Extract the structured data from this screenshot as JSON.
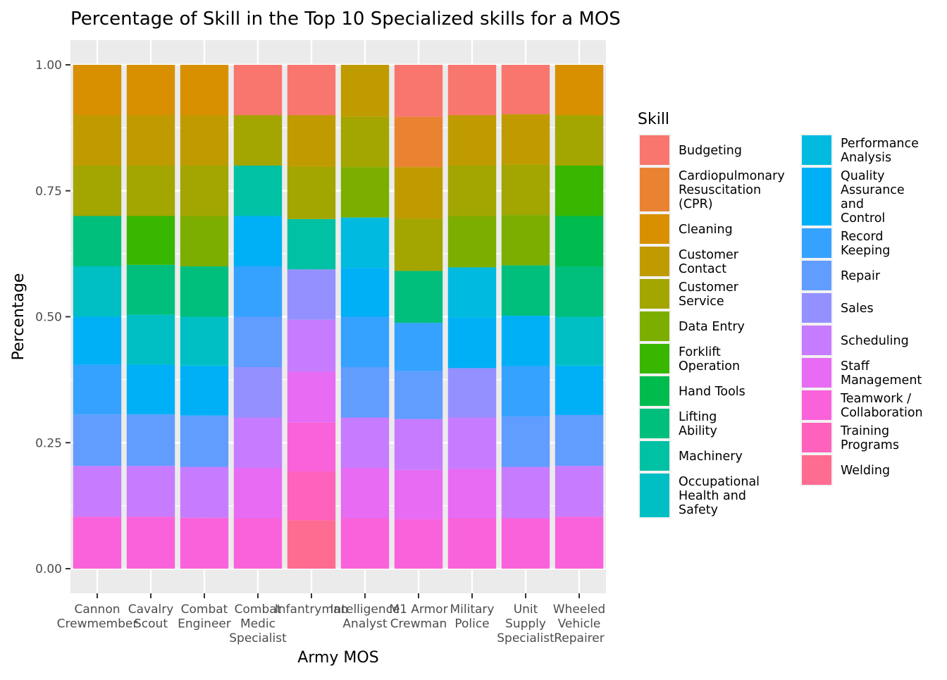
{
  "chart_data": {
    "type": "bar",
    "stacked": true,
    "title": "Percentage of Skill in the Top 10 Specialized skills for a MOS",
    "xlabel": "Army MOS",
    "ylabel": "Percentage",
    "ylim": [
      0,
      1
    ],
    "yticks": [
      "0.00",
      "0.25",
      "0.50",
      "0.75",
      "1.00"
    ],
    "grid": true,
    "legend_title": "Skill",
    "legend_position": "right",
    "categories": [
      "Cannon\nCrewmember",
      "Cavalry\nScout",
      "Combat\nEngineer",
      "Combat\nMedic\nSpecialist",
      "Infantryman",
      "Intelligence\nAnalyst",
      "M1 Armor\nCrewman",
      "Military\nPolice",
      "Unit\nSupply\nSpecialist",
      "Wheeled\nVehicle\nRepairer"
    ],
    "skills": [
      {
        "name": "Budgeting",
        "color": "#F8766D"
      },
      {
        "name": "Cardiopulmonary\nResuscitation\n(CPR)",
        "color": "#EA8331"
      },
      {
        "name": "Cleaning",
        "color": "#D89000"
      },
      {
        "name": "Customer\nContact",
        "color": "#C09B00"
      },
      {
        "name": "Customer\nService",
        "color": "#A3A500"
      },
      {
        "name": "Data Entry",
        "color": "#7CAE00"
      },
      {
        "name": "Forklift\nOperation",
        "color": "#39B600"
      },
      {
        "name": "Hand Tools",
        "color": "#00BB4E"
      },
      {
        "name": "Lifting\nAbility",
        "color": "#00BF7D"
      },
      {
        "name": "Machinery",
        "color": "#00C1A3"
      },
      {
        "name": "Occupational\nHealth and\nSafety",
        "color": "#00BFC4"
      },
      {
        "name": "Performance\nAnalysis",
        "color": "#00BAE0"
      },
      {
        "name": "Quality\nAssurance\nand\nControl",
        "color": "#00B0F6"
      },
      {
        "name": "Record\nKeeping",
        "color": "#35A2FF"
      },
      {
        "name": "Repair",
        "color": "#619CFF"
      },
      {
        "name": "Sales",
        "color": "#9590FF"
      },
      {
        "name": "Scheduling",
        "color": "#C77CFF"
      },
      {
        "name": "Staff\nManagement",
        "color": "#E76BF3"
      },
      {
        "name": "Teamwork /\nCollaboration",
        "color": "#FA62DB"
      },
      {
        "name": "Training\nPrograms",
        "color": "#FF62BC"
      },
      {
        "name": "Welding",
        "color": "#FF6C91"
      }
    ],
    "stacks": [
      {
        "category": "Cannon\nCrewmember",
        "segments": [
          {
            "skill": "Teamwork /\nCollaboration",
            "value": 0.103
          },
          {
            "skill": "Scheduling",
            "value": 0.101
          },
          {
            "skill": "Repair",
            "value": 0.102
          },
          {
            "skill": "Record\nKeeping",
            "value": 0.099
          },
          {
            "skill": "Quality\nAssurance\nand\nControl",
            "value": 0.095
          },
          {
            "skill": "Occupational\nHealth and\nSafety",
            "value": 0.1
          },
          {
            "skill": "Lifting\nAbility",
            "value": 0.1
          },
          {
            "skill": "Customer\nService",
            "value": 0.1
          },
          {
            "skill": "Customer\nContact",
            "value": 0.1
          },
          {
            "skill": "Cleaning",
            "value": 0.1
          }
        ]
      },
      {
        "category": "Cavalry\nScout",
        "segments": [
          {
            "skill": "Teamwork /\nCollaboration",
            "value": 0.103
          },
          {
            "skill": "Scheduling",
            "value": 0.101
          },
          {
            "skill": "Repair",
            "value": 0.102
          },
          {
            "skill": "Quality\nAssurance\nand\nControl",
            "value": 0.099
          },
          {
            "skill": "Occupational\nHealth and\nSafety",
            "value": 0.099
          },
          {
            "skill": "Lifting\nAbility",
            "value": 0.099
          },
          {
            "skill": "Forklift\nOperation",
            "value": 0.097
          },
          {
            "skill": "Customer\nService",
            "value": 0.1
          },
          {
            "skill": "Customer\nContact",
            "value": 0.1
          },
          {
            "skill": "Cleaning",
            "value": 0.1
          }
        ]
      },
      {
        "category": "Combat\nEngineer",
        "segments": [
          {
            "skill": "Teamwork /\nCollaboration",
            "value": 0.101
          },
          {
            "skill": "Scheduling",
            "value": 0.101
          },
          {
            "skill": "Repair",
            "value": 0.102
          },
          {
            "skill": "Quality\nAssurance\nand\nControl",
            "value": 0.099
          },
          {
            "skill": "Occupational\nHealth and\nSafety",
            "value": 0.097
          },
          {
            "skill": "Lifting\nAbility",
            "value": 0.1
          },
          {
            "skill": "Data Entry",
            "value": 0.1
          },
          {
            "skill": "Customer\nService",
            "value": 0.1
          },
          {
            "skill": "Customer\nContact",
            "value": 0.1
          },
          {
            "skill": "Cleaning",
            "value": 0.1
          }
        ]
      },
      {
        "category": "Combat\nMedic\nSpecialist",
        "segments": [
          {
            "skill": "Teamwork /\nCollaboration",
            "value": 0.1
          },
          {
            "skill": "Staff\nManagement",
            "value": 0.1
          },
          {
            "skill": "Scheduling",
            "value": 0.1
          },
          {
            "skill": "Sales",
            "value": 0.1
          },
          {
            "skill": "Repair",
            "value": 0.1
          },
          {
            "skill": "Record\nKeeping",
            "value": 0.1
          },
          {
            "skill": "Quality\nAssurance\nand\nControl",
            "value": 0.1
          },
          {
            "skill": "Machinery",
            "value": 0.1
          },
          {
            "skill": "Customer\nService",
            "value": 0.1
          },
          {
            "skill": "Budgeting",
            "value": 0.1
          }
        ]
      },
      {
        "category": "Infantryman",
        "segments": [
          {
            "skill": "Welding",
            "value": 0.096
          },
          {
            "skill": "Training\nPrograms",
            "value": 0.097
          },
          {
            "skill": "Teamwork /\nCollaboration",
            "value": 0.097
          },
          {
            "skill": "Staff\nManagement",
            "value": 0.101
          },
          {
            "skill": "Scheduling",
            "value": 0.103
          },
          {
            "skill": "Sales",
            "value": 0.1
          },
          {
            "skill": "Machinery",
            "value": 0.1
          },
          {
            "skill": "Customer\nService",
            "value": 0.104
          },
          {
            "skill": "Customer\nContact",
            "value": 0.102
          },
          {
            "skill": "Budgeting",
            "value": 0.1
          }
        ]
      },
      {
        "category": "Intelligence\nAnalyst",
        "segments": [
          {
            "skill": "Teamwork /\nCollaboration",
            "value": 0.1
          },
          {
            "skill": "Staff\nManagement",
            "value": 0.1
          },
          {
            "skill": "Scheduling",
            "value": 0.1
          },
          {
            "skill": "Repair",
            "value": 0.1
          },
          {
            "skill": "Record\nKeeping",
            "value": 0.1
          },
          {
            "skill": "Quality\nAssurance\nand\nControl",
            "value": 0.097
          },
          {
            "skill": "Performance\nAnalysis",
            "value": 0.1
          },
          {
            "skill": "Data Entry",
            "value": 0.1
          },
          {
            "skill": "Customer\nService",
            "value": 0.1
          },
          {
            "skill": "Customer\nContact",
            "value": 0.103
          }
        ]
      },
      {
        "category": "M1 Armor\nCrewman",
        "segments": [
          {
            "skill": "Teamwork /\nCollaboration",
            "value": 0.098
          },
          {
            "skill": "Staff\nManagement",
            "value": 0.098
          },
          {
            "skill": "Scheduling",
            "value": 0.101
          },
          {
            "skill": "Repair",
            "value": 0.095
          },
          {
            "skill": "Record\nKeeping",
            "value": 0.096
          },
          {
            "skill": "Lifting\nAbility",
            "value": 0.103
          },
          {
            "skill": "Customer\nService",
            "value": 0.104
          },
          {
            "skill": "Customer\nContact",
            "value": 0.102
          },
          {
            "skill": "Cardiopulmonary\nResuscitation\n(CPR)",
            "value": 0.1
          },
          {
            "skill": "Budgeting",
            "value": 0.103
          }
        ]
      },
      {
        "category": "Military\nPolice",
        "segments": [
          {
            "skill": "Teamwork /\nCollaboration",
            "value": 0.1
          },
          {
            "skill": "Staff\nManagement",
            "value": 0.098
          },
          {
            "skill": "Scheduling",
            "value": 0.102
          },
          {
            "skill": "Sales",
            "value": 0.098
          },
          {
            "skill": "Quality\nAssurance\nand\nControl",
            "value": 0.1
          },
          {
            "skill": "Performance\nAnalysis",
            "value": 0.1
          },
          {
            "skill": "Data Entry",
            "value": 0.102
          },
          {
            "skill": "Customer\nService",
            "value": 0.1
          },
          {
            "skill": "Customer\nContact",
            "value": 0.1
          },
          {
            "skill": "Budgeting",
            "value": 0.1
          }
        ]
      },
      {
        "category": "Unit\nSupply\nSpecialist",
        "segments": [
          {
            "skill": "Teamwork /\nCollaboration",
            "value": 0.1
          },
          {
            "skill": "Scheduling",
            "value": 0.102
          },
          {
            "skill": "Repair",
            "value": 0.1
          },
          {
            "skill": "Record\nKeeping",
            "value": 0.1
          },
          {
            "skill": "Quality\nAssurance\nand\nControl",
            "value": 0.1
          },
          {
            "skill": "Lifting\nAbility",
            "value": 0.1
          },
          {
            "skill": "Data Entry",
            "value": 0.1
          },
          {
            "skill": "Customer\nService",
            "value": 0.1
          },
          {
            "skill": "Customer\nContact",
            "value": 0.1
          },
          {
            "skill": "Budgeting",
            "value": 0.098
          }
        ]
      },
      {
        "category": "Wheeled\nVehicle\nRepairer",
        "segments": [
          {
            "skill": "Teamwork /\nCollaboration",
            "value": 0.103
          },
          {
            "skill": "Scheduling",
            "value": 0.101
          },
          {
            "skill": "Repair",
            "value": 0.101
          },
          {
            "skill": "Quality\nAssurance\nand\nControl",
            "value": 0.098
          },
          {
            "skill": "Occupational\nHealth and\nSafety",
            "value": 0.097
          },
          {
            "skill": "Lifting\nAbility",
            "value": 0.1
          },
          {
            "skill": "Hand Tools",
            "value": 0.1
          },
          {
            "skill": "Forklift\nOperation",
            "value": 0.1
          },
          {
            "skill": "Customer\nService",
            "value": 0.1
          },
          {
            "skill": "Cleaning",
            "value": 0.1
          }
        ]
      }
    ]
  }
}
